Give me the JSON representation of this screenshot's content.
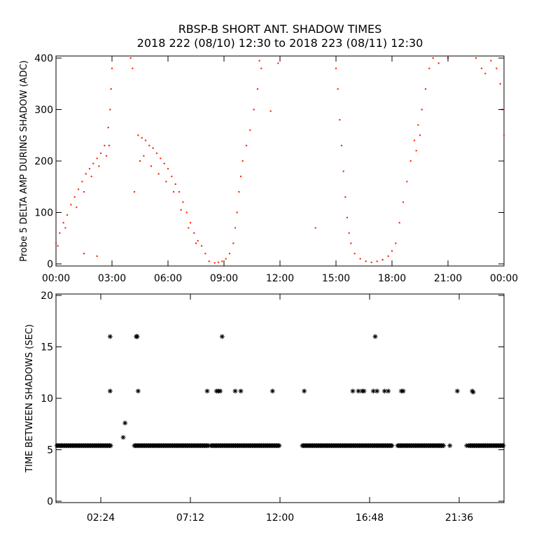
{
  "title": {
    "line1": "RBSP-B SHORT ANT. SHADOW TIMES",
    "line2": "2018 222 (08/10) 12:30 to 2018 223 (08/11) 12:30"
  },
  "colors": {
    "top_series": "#ff2200",
    "bottom_series": "#000000",
    "axes": "#000000"
  },
  "chart_data": [
    {
      "type": "scatter",
      "title": "",
      "ylabel": "Probe 5 DELTA AMP DURING SHADOW (ADC)",
      "xlabel": "",
      "x_unit": "hours",
      "xlim": [
        0,
        24
      ],
      "ylim": [
        0,
        400
      ],
      "x_tick_labels": [
        "00:00",
        "03:00",
        "06:00",
        "09:00",
        "12:00",
        "15:00",
        "18:00",
        "21:00",
        "00:00"
      ],
      "y_tick_labels": [
        "0",
        "100",
        "200",
        "300",
        "400"
      ],
      "grid": false,
      "series": [
        {
          "values": [
            [
              0.0,
              40
            ],
            [
              0.2,
              60
            ],
            [
              0.4,
              80
            ],
            [
              0.6,
              95
            ],
            [
              0.8,
              115
            ],
            [
              1.0,
              130
            ],
            [
              1.2,
              145
            ],
            [
              1.4,
              160
            ],
            [
              1.6,
              175
            ],
            [
              1.8,
              185
            ],
            [
              2.0,
              195
            ],
            [
              2.2,
              205
            ],
            [
              2.4,
              215
            ],
            [
              2.6,
              230
            ],
            [
              2.8,
              265
            ],
            [
              2.9,
              300
            ],
            [
              2.95,
              340
            ],
            [
              3.0,
              380
            ],
            [
              0.1,
              35
            ],
            [
              0.5,
              70
            ],
            [
              1.1,
              110
            ],
            [
              1.5,
              140
            ],
            [
              1.9,
              170
            ],
            [
              2.3,
              190
            ],
            [
              2.7,
              210
            ],
            [
              2.85,
              230
            ],
            [
              1.5,
              20
            ],
            [
              2.2,
              15
            ],
            [
              4.2,
              140
            ],
            [
              4.4,
              250
            ],
            [
              4.6,
              245
            ],
            [
              4.8,
              240
            ],
            [
              5.0,
              230
            ],
            [
              5.2,
              225
            ],
            [
              5.4,
              215
            ],
            [
              5.6,
              205
            ],
            [
              5.8,
              195
            ],
            [
              6.0,
              185
            ],
            [
              6.2,
              170
            ],
            [
              6.4,
              155
            ],
            [
              6.6,
              140
            ],
            [
              6.8,
              120
            ],
            [
              7.0,
              100
            ],
            [
              7.2,
              80
            ],
            [
              7.4,
              60
            ],
            [
              7.6,
              45
            ],
            [
              7.8,
              35
            ],
            [
              8.0,
              20
            ],
            [
              8.2,
              5
            ],
            [
              4.5,
              200
            ],
            [
              4.7,
              210
            ],
            [
              5.1,
              190
            ],
            [
              5.5,
              175
            ],
            [
              5.9,
              160
            ],
            [
              6.3,
              140
            ],
            [
              6.7,
              105
            ],
            [
              7.1,
              70
            ],
            [
              7.5,
              40
            ],
            [
              4.1,
              380
            ],
            [
              4.0,
              400
            ],
            [
              8.5,
              2
            ],
            [
              8.7,
              3
            ],
            [
              8.9,
              5
            ],
            [
              9.1,
              10
            ],
            [
              9.3,
              20
            ],
            [
              9.5,
              40
            ],
            [
              9.6,
              70
            ],
            [
              9.7,
              100
            ],
            [
              9.8,
              140
            ],
            [
              9.9,
              170
            ],
            [
              10.0,
              200
            ],
            [
              10.2,
              230
            ],
            [
              10.4,
              260
            ],
            [
              10.6,
              300
            ],
            [
              10.8,
              340
            ],
            [
              11.0,
              380
            ],
            [
              10.9,
              395
            ],
            [
              11.5,
              297
            ],
            [
              11.9,
              390
            ],
            [
              13.9,
              70
            ],
            [
              15.0,
              380
            ],
            [
              15.1,
              340
            ],
            [
              15.2,
              280
            ],
            [
              15.3,
              230
            ],
            [
              15.4,
              180
            ],
            [
              15.5,
              130
            ],
            [
              15.6,
              90
            ],
            [
              15.7,
              60
            ],
            [
              15.8,
              40
            ],
            [
              16.0,
              20
            ],
            [
              16.3,
              10
            ],
            [
              16.6,
              5
            ],
            [
              16.9,
              3
            ],
            [
              17.2,
              5
            ],
            [
              17.5,
              8
            ],
            [
              17.8,
              15
            ],
            [
              18.0,
              25
            ],
            [
              18.2,
              40
            ],
            [
              18.4,
              80
            ],
            [
              18.6,
              120
            ],
            [
              18.8,
              160
            ],
            [
              19.0,
              200
            ],
            [
              19.2,
              240
            ],
            [
              19.4,
              270
            ],
            [
              19.6,
              300
            ],
            [
              19.8,
              340
            ],
            [
              20.0,
              380
            ],
            [
              20.2,
              400
            ],
            [
              20.5,
              390
            ],
            [
              21.0,
              400
            ],
            [
              22.5,
              400
            ],
            [
              22.8,
              380
            ],
            [
              23.0,
              370
            ],
            [
              23.3,
              395
            ],
            [
              23.6,
              380
            ],
            [
              23.9,
              300
            ],
            [
              24.0,
              250
            ],
            [
              23.8,
              350
            ],
            [
              19.3,
              220
            ],
            [
              19.5,
              250
            ]
          ]
        }
      ]
    },
    {
      "type": "scatter",
      "title": "",
      "ylabel": "TIME BETWEEN SHADOWS (SEC)",
      "xlabel": "",
      "x_unit": "hours",
      "xlim": [
        0,
        24
      ],
      "ylim": [
        0,
        20
      ],
      "x_tick_labels": [
        "02:24",
        "07:12",
        "12:00",
        "16:48",
        "21:36"
      ],
      "y_tick_labels": [
        "0",
        "5",
        "10",
        "15",
        "20"
      ],
      "grid": false,
      "series": [
        {
          "values": [
            [
              2.9,
              16
            ],
            [
              2.9,
              10.7
            ],
            [
              3.7,
              7.6
            ],
            [
              3.6,
              6.2
            ],
            [
              4.3,
              16
            ],
            [
              4.35,
              16
            ],
            [
              4.4,
              10.7
            ],
            [
              8.1,
              10.7
            ],
            [
              8.6,
              10.7
            ],
            [
              8.7,
              10.7
            ],
            [
              8.8,
              10.7
            ],
            [
              8.9,
              16
            ],
            [
              9.6,
              10.7
            ],
            [
              9.9,
              10.7
            ],
            [
              11.6,
              10.7
            ],
            [
              13.3,
              10.7
            ],
            [
              15.9,
              10.7
            ],
            [
              16.2,
              10.7
            ],
            [
              16.4,
              10.7
            ],
            [
              16.5,
              10.7
            ],
            [
              17.0,
              10.7
            ],
            [
              17.1,
              16
            ],
            [
              17.2,
              10.7
            ],
            [
              17.6,
              10.7
            ],
            [
              17.8,
              10.7
            ],
            [
              18.5,
              10.7
            ],
            [
              18.6,
              10.7
            ],
            [
              21.5,
              10.7
            ],
            [
              22.3,
              10.7
            ],
            [
              22.35,
              10.6
            ],
            [
              21.1,
              5.4
            ],
            [
              22.0,
              5.4
            ]
          ]
        },
        {
          "name_hidden": true,
          "baseline_value": 5.4,
          "segments": [
            [
              0.05,
              2.95
            ],
            [
              4.2,
              8.2
            ],
            [
              8.3,
              12.0
            ],
            [
              13.2,
              18.0
            ],
            [
              18.3,
              20.8
            ],
            [
              22.1,
              24.0
            ]
          ]
        }
      ]
    }
  ]
}
